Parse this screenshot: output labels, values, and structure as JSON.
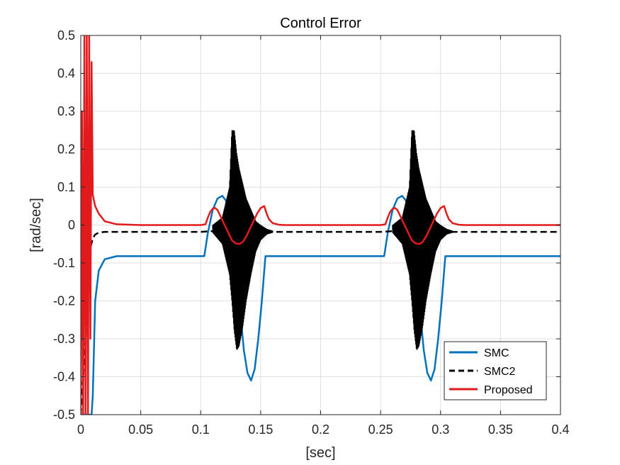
{
  "chart_data": {
    "type": "line",
    "title": "Control Error",
    "xlabel": "[sec]",
    "ylabel": "[rad/sec]",
    "xlim": [
      0,
      0.4
    ],
    "ylim": [
      -0.5,
      0.5
    ],
    "xticks": [
      "0",
      "0.05",
      "0.1",
      "0.15",
      "0.2",
      "0.25",
      "0.3",
      "0.35",
      "0.4"
    ],
    "yticks": [
      "-0.5",
      "-0.4",
      "-0.3",
      "-0.2",
      "-0.1",
      "0",
      "0.1",
      "0.2",
      "0.3",
      "0.4",
      "0.5"
    ],
    "grid": true,
    "legend_position": "bottom-right",
    "series": [
      {
        "name": "SMC",
        "color": "#0072BD",
        "style": "solid",
        "x": [
          0.0,
          0.005,
          0.008,
          0.009,
          0.01,
          0.012,
          0.015,
          0.02,
          0.03,
          0.05,
          0.09,
          0.103,
          0.106,
          0.11,
          0.114,
          0.118,
          0.121,
          0.124,
          0.127,
          0.13,
          0.133,
          0.136,
          0.139,
          0.142,
          0.145,
          0.148,
          0.151,
          0.153,
          0.154,
          0.2,
          0.253,
          0.256,
          0.26,
          0.264,
          0.268,
          0.271,
          0.274,
          0.277,
          0.28,
          0.283,
          0.286,
          0.289,
          0.292,
          0.295,
          0.298,
          0.301,
          0.303,
          0.304,
          0.35,
          0.4
        ],
        "y": [
          -0.5,
          -0.5,
          -0.5,
          -0.5,
          -0.45,
          -0.2,
          -0.12,
          -0.09,
          -0.082,
          -0.082,
          -0.082,
          -0.082,
          -0.02,
          0.04,
          0.07,
          0.077,
          0.065,
          0.03,
          -0.03,
          -0.12,
          -0.23,
          -0.33,
          -0.39,
          -0.41,
          -0.38,
          -0.3,
          -0.2,
          -0.12,
          -0.082,
          -0.082,
          -0.082,
          -0.02,
          0.04,
          0.07,
          0.077,
          0.065,
          0.03,
          -0.03,
          -0.12,
          -0.23,
          -0.33,
          -0.39,
          -0.41,
          -0.38,
          -0.3,
          -0.2,
          -0.12,
          -0.082,
          -0.082,
          -0.082
        ]
      },
      {
        "name": "SMC2",
        "color": "#000000",
        "style": "dashed",
        "x": [
          0.0,
          0.004,
          0.006,
          0.008,
          0.01,
          0.012,
          0.015,
          0.02,
          0.05,
          0.1,
          0.11,
          0.118,
          0.12,
          0.122,
          0.124,
          0.125,
          0.16,
          0.2,
          0.25,
          0.26,
          0.268,
          0.27,
          0.272,
          0.274,
          0.275,
          0.31,
          0.35,
          0.4
        ],
        "y": [
          -0.5,
          -0.3,
          -0.1,
          -0.06,
          -0.035,
          -0.025,
          -0.02,
          -0.018,
          -0.018,
          -0.018,
          -0.016,
          -0.01,
          -0.005,
          0.0,
          0.005,
          0.0,
          -0.018,
          -0.018,
          -0.018,
          -0.016,
          -0.01,
          -0.005,
          0.0,
          0.005,
          0.0,
          -0.018,
          -0.018,
          -0.018
        ]
      },
      {
        "name": "Proposed",
        "color": "#E31A1C",
        "style": "solid",
        "x": [
          0.0,
          0.001,
          0.002,
          0.003,
          0.004,
          0.005,
          0.006,
          0.007,
          0.008,
          0.009,
          0.01,
          0.012,
          0.015,
          0.02,
          0.03,
          0.05,
          0.1,
          0.104,
          0.106,
          0.108,
          0.11,
          0.112,
          0.114,
          0.117,
          0.12,
          0.123,
          0.126,
          0.129,
          0.132,
          0.135,
          0.138,
          0.141,
          0.144,
          0.147,
          0.15,
          0.153,
          0.155,
          0.157,
          0.16,
          0.165,
          0.17,
          0.2,
          0.25,
          0.254,
          0.256,
          0.258,
          0.26,
          0.262,
          0.264,
          0.267,
          0.27,
          0.273,
          0.276,
          0.279,
          0.282,
          0.285,
          0.288,
          0.291,
          0.294,
          0.297,
          0.3,
          0.303,
          0.305,
          0.307,
          0.31,
          0.315,
          0.32,
          0.35,
          0.4
        ],
        "y": [
          -0.5,
          0.3,
          -0.5,
          0.5,
          -0.5,
          0.5,
          -0.5,
          0.5,
          -0.3,
          0.43,
          0.08,
          0.05,
          0.03,
          0.01,
          0.002,
          0.0,
          0.0,
          0.002,
          0.02,
          0.035,
          0.043,
          0.045,
          0.04,
          0.02,
          0.0,
          -0.02,
          -0.04,
          -0.048,
          -0.05,
          -0.045,
          -0.03,
          -0.01,
          0.01,
          0.03,
          0.045,
          0.05,
          0.03,
          0.015,
          0.005,
          0.001,
          0.0,
          0.0,
          0.0,
          0.002,
          0.02,
          0.035,
          0.043,
          0.045,
          0.04,
          0.02,
          0.0,
          -0.02,
          -0.04,
          -0.048,
          -0.05,
          -0.045,
          -0.03,
          -0.01,
          0.01,
          0.03,
          0.045,
          0.05,
          0.03,
          0.015,
          0.005,
          0.001,
          0.0,
          0.0,
          0.0
        ]
      }
    ],
    "oscillation_bands": [
      {
        "series": "SMC2",
        "color": "#000000",
        "x_start": 0.11,
        "x_end": 0.16,
        "envelope_x": [
          0.11,
          0.118,
          0.124,
          0.126,
          0.128,
          0.13,
          0.132,
          0.135,
          0.138,
          0.142,
          0.146,
          0.15,
          0.155,
          0.16
        ],
        "envelope_upper": [
          0.0,
          0.02,
          0.1,
          0.25,
          0.25,
          0.19,
          0.15,
          0.11,
          0.07,
          0.04,
          0.01,
          0.0,
          -0.01,
          -0.015
        ],
        "envelope_lower": [
          -0.02,
          -0.05,
          -0.13,
          -0.2,
          -0.28,
          -0.33,
          -0.32,
          -0.27,
          -0.2,
          -0.13,
          -0.07,
          -0.04,
          -0.025,
          -0.02
        ]
      },
      {
        "series": "SMC2",
        "color": "#000000",
        "x_start": 0.26,
        "x_end": 0.31,
        "envelope_x": [
          0.26,
          0.268,
          0.274,
          0.276,
          0.278,
          0.28,
          0.282,
          0.285,
          0.288,
          0.292,
          0.296,
          0.3,
          0.305,
          0.31
        ],
        "envelope_upper": [
          0.0,
          0.02,
          0.1,
          0.25,
          0.25,
          0.19,
          0.15,
          0.11,
          0.07,
          0.04,
          0.01,
          0.0,
          -0.01,
          -0.015
        ],
        "envelope_lower": [
          -0.02,
          -0.05,
          -0.13,
          -0.2,
          -0.28,
          -0.33,
          -0.32,
          -0.27,
          -0.2,
          -0.13,
          -0.07,
          -0.04,
          -0.025,
          -0.02
        ]
      }
    ]
  }
}
